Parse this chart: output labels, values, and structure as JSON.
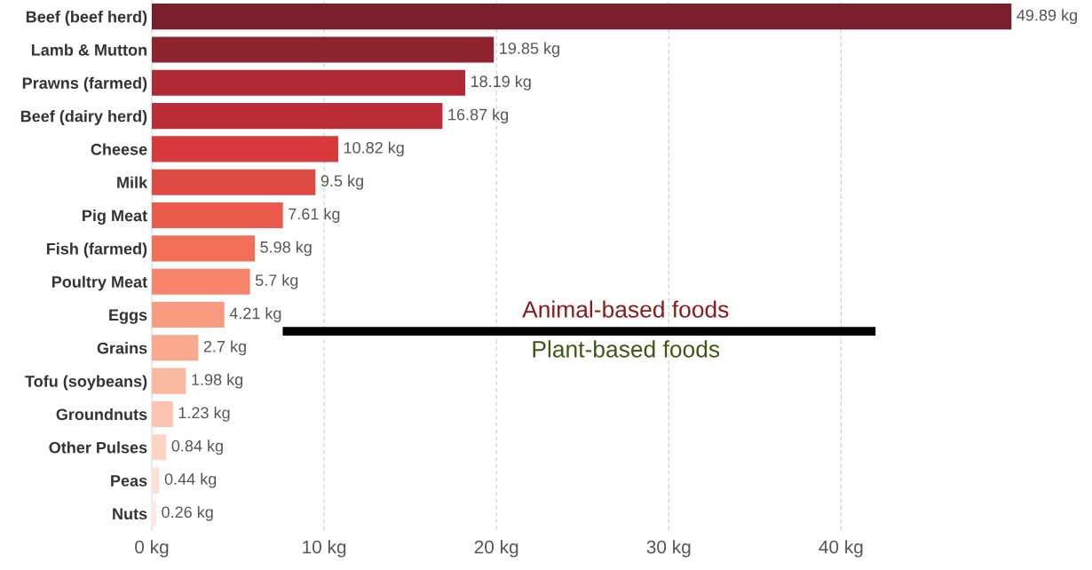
{
  "chart_data": {
    "type": "bar",
    "orientation": "horizontal",
    "categories": [
      "Beef (beef herd)",
      "Lamb & Mutton",
      "Prawns (farmed)",
      "Beef (dairy herd)",
      "Cheese",
      "Milk",
      "Pig Meat",
      "Fish (farmed)",
      "Poultry Meat",
      "Eggs",
      "Grains",
      "Tofu (soybeans)",
      "Groundnuts",
      "Other Pulses",
      "Peas",
      "Nuts"
    ],
    "values": [
      49.89,
      19.85,
      18.19,
      16.87,
      10.82,
      9.5,
      7.61,
      5.98,
      5.7,
      4.21,
      2.7,
      1.98,
      1.23,
      0.84,
      0.44,
      0.26
    ],
    "value_labels": [
      "49.89 kg",
      "19.85 kg",
      "18.19 kg",
      "16.87 kg",
      "10.82 kg",
      "9.5 kg",
      "7.61 kg",
      "5.98 kg",
      "5.7 kg",
      "4.21 kg",
      "2.7 kg",
      "1.98 kg",
      "1.23 kg",
      "0.84 kg",
      "0.44 kg",
      "0.26 kg"
    ],
    "colors": [
      "#7a1f2e",
      "#8e2430",
      "#b02a35",
      "#bb2d37",
      "#d63a3c",
      "#e04a44",
      "#eb5b4b",
      "#f27058",
      "#f7836a",
      "#f79a80",
      "#f9a98e",
      "#fbb8a0",
      "#fcc4b0",
      "#fdd3c2",
      "#fde0d4",
      "#fde8df"
    ],
    "xlim": [
      0,
      50
    ],
    "xticks": [
      {
        "value": 0,
        "label": "0 kg"
      },
      {
        "value": 10,
        "label": "10 kg"
      },
      {
        "value": 20,
        "label": "20 kg"
      },
      {
        "value": 30,
        "label": "30 kg"
      },
      {
        "value": 40,
        "label": "40 kg"
      }
    ],
    "grid": "x",
    "annotations": [
      "Animal-based foods",
      "Plant-based foods"
    ]
  }
}
